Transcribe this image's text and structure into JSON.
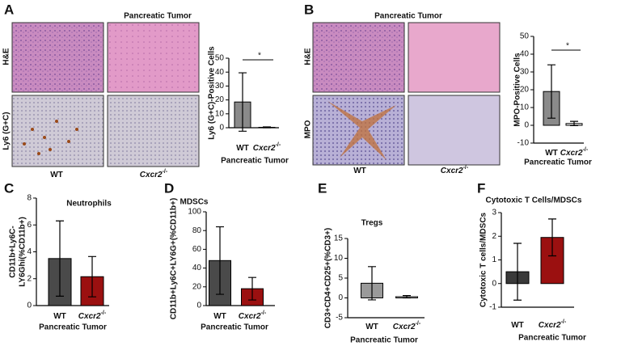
{
  "figure": {
    "panel_letters": [
      "A",
      "B",
      "C",
      "D",
      "E",
      "F"
    ],
    "A": {
      "title": "Pancreatic Tumor",
      "row_labels": [
        "H&E",
        "Ly6 (G+C)"
      ],
      "column_labels": [
        "WT",
        "Cxcr2"
      ],
      "column_superscripts": [
        null,
        "-/-"
      ]
    },
    "B": {
      "title": "Pancreatic Tumor",
      "row_labels": [
        "H&E",
        "MPO"
      ],
      "column_labels": [
        "WT",
        "Cxcr2"
      ],
      "column_superscripts": [
        null,
        "-/-"
      ]
    }
  },
  "chart_data": [
    {
      "type": "bar",
      "y_label": "Ly6 (G+C)-Positive Cells",
      "x_label": "Pancreatic Tumor",
      "categories": [
        "WT",
        "Cxcr2"
      ],
      "category_superscripts": [
        null,
        "-/-"
      ],
      "values": [
        18.5,
        0.3
      ],
      "errors": [
        21,
        0.3
      ],
      "colors": [
        "#8a8a8a",
        "#ffffff"
      ],
      "ylim": [
        0,
        50
      ],
      "yticks": [
        0,
        10,
        20,
        30,
        40,
        50
      ],
      "significance": "*"
    },
    {
      "type": "bar",
      "y_label": "MPO-Positive Cells",
      "x_label": "Pancreatic Tumor",
      "categories": [
        "WT",
        "Cxcr2"
      ],
      "category_superscripts": [
        null,
        "-/-"
      ],
      "values": [
        19,
        1
      ],
      "errors": [
        15,
        1.2
      ],
      "colors": [
        "#8a8a8a",
        "#ffffff"
      ],
      "ylim": [
        -10,
        50
      ],
      "yticks": [
        -10,
        0,
        10,
        20,
        30,
        40,
        50
      ],
      "significance": "*"
    },
    {
      "type": "bar",
      "title": "Neutrophils",
      "y_label": [
        "CD11b+Ly6C-",
        "LY6Ghi(%CD11b+)"
      ],
      "x_label": "Pancreatic Tumor",
      "categories": [
        "WT",
        "Cxcr2"
      ],
      "category_superscripts": [
        null,
        "-/-"
      ],
      "values": [
        3.5,
        2.15
      ],
      "errors": [
        2.8,
        1.5
      ],
      "colors": [
        "#4a4a4a",
        "#9b1010"
      ],
      "ylim": [
        0,
        8
      ],
      "yticks": [
        0,
        2,
        4,
        6,
        8
      ]
    },
    {
      "type": "bar",
      "title": "MDSCs",
      "y_label": "CD11b+Ly6C+LY6G+(%CD11b+)",
      "x_label": "Pancreatic Tumor",
      "categories": [
        "WT",
        "Cxcr2"
      ],
      "category_superscripts": [
        null,
        "-/-"
      ],
      "values": [
        48,
        18
      ],
      "errors": [
        36,
        12
      ],
      "colors": [
        "#4a4a4a",
        "#9b1010"
      ],
      "ylim": [
        0,
        100
      ],
      "yticks": [
        0,
        20,
        40,
        60,
        80,
        100
      ]
    },
    {
      "type": "bar",
      "title": "Tregs",
      "y_label": "CD3+CD4+CD25+(%CD3+)",
      "x_label": "Pancreatic Tumor",
      "categories": [
        "WT",
        "Cxcr2"
      ],
      "category_superscripts": [
        null,
        "-/-"
      ],
      "values": [
        3.7,
        0.3
      ],
      "errors": [
        4.2,
        0.3
      ],
      "colors": [
        "#9a9a9a",
        "#f0f0f0"
      ],
      "ylim": [
        -5,
        15
      ],
      "yticks": [
        -5,
        0,
        5,
        10,
        15
      ]
    },
    {
      "type": "bar",
      "title": "Cytotoxic T Cells/MDSCs",
      "y_label": "Cytotoxic T cells/MDSCs",
      "x_label": "Pancreatic Tumor",
      "categories": [
        "WT",
        "Cxcr2"
      ],
      "category_superscripts": [
        null,
        "-/-"
      ],
      "values": [
        0.5,
        1.95
      ],
      "errors": [
        1.2,
        0.78
      ],
      "colors": [
        "#3a3a3a",
        "#9b1010"
      ],
      "ylim": [
        -1,
        3
      ],
      "yticks": [
        -1,
        0,
        1,
        2,
        3
      ]
    }
  ]
}
